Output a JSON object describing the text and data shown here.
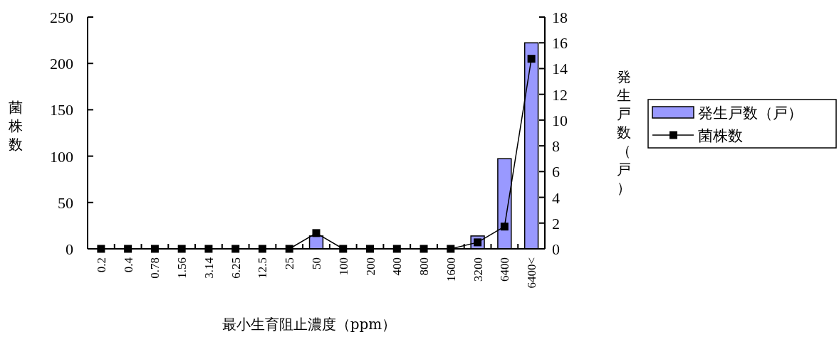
{
  "chart_data": {
    "type": "bar",
    "categories": [
      "0.2",
      "0.4",
      "0.78",
      "1.56",
      "3.14",
      "6.25",
      "12.5",
      "25",
      "50",
      "100",
      "200",
      "400",
      "800",
      "1600",
      "3200",
      "6400",
      "6400<"
    ],
    "xlabel": "最小生育阻止濃度（ppm）",
    "ylabel": "菌株数",
    "y2label": "発生戸数（戸）",
    "series": [
      {
        "name": "発生戸数（戸）",
        "axis": "y2",
        "color": "#9999ff",
        "values": [
          0,
          0,
          0,
          0,
          0,
          0,
          0,
          0,
          1,
          0,
          0,
          0,
          0,
          0,
          1,
          7,
          16
        ]
      },
      {
        "name": "菌株数",
        "type": "line",
        "axis": "y",
        "color": "#000000",
        "marker": "square",
        "line_style": "solid",
        "values": [
          0,
          0,
          0,
          0,
          0,
          0,
          0,
          0,
          17,
          0,
          0,
          0,
          0,
          0,
          7,
          24,
          205
        ]
      }
    ],
    "ylim": [
      0,
      250
    ],
    "yticks": [
      0,
      50,
      100,
      150,
      200,
      250
    ],
    "y2lim": [
      0,
      18
    ],
    "y2ticks": [
      0,
      2,
      4,
      6,
      8,
      10,
      12,
      14,
      16,
      18
    ],
    "legend": "right",
    "grid": false
  }
}
